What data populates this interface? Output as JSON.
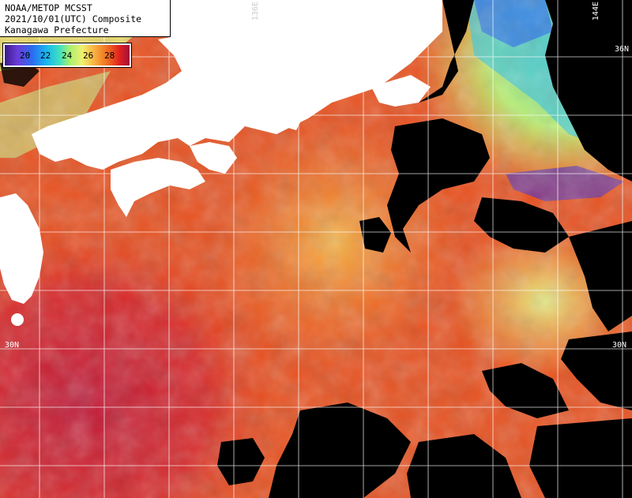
{
  "title": {
    "line1": "NOAA/METOP MCSST",
    "line2": "2021/10/01(UTC) Composite",
    "line3": "Kanagawa Prefecture"
  },
  "legend": {
    "ticks": [
      "20",
      "22",
      "24",
      "26",
      "28"
    ],
    "colors": [
      "#3a1a8c",
      "#2a6cf0",
      "#18b4f0",
      "#a8f070",
      "#f0f070",
      "#f8b040",
      "#f07020",
      "#e02020",
      "#a0103a"
    ]
  },
  "coords": {
    "lat_36": "36N",
    "lat_30_left": "30N",
    "lat_30_right": "30N",
    "lon_144": "144E",
    "lon_136": "136E"
  },
  "colors": {
    "land": "#ffffff",
    "cloud": "#000000",
    "grid": "#ffffff"
  }
}
